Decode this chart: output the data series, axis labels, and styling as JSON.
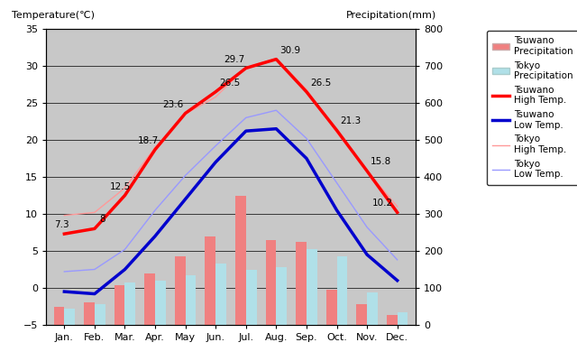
{
  "months": [
    "Jan.",
    "Feb.",
    "Mar.",
    "Apr.",
    "May",
    "Jun.",
    "Jul.",
    "Aug.",
    "Sep.",
    "Oct.",
    "Nov.",
    "Dec."
  ],
  "tsuwano_high": [
    7.3,
    8.0,
    12.5,
    18.7,
    23.6,
    26.5,
    29.7,
    30.9,
    26.5,
    21.3,
    15.8,
    10.2
  ],
  "tsuwano_low": [
    -0.5,
    -0.8,
    2.5,
    7.0,
    12.0,
    17.0,
    21.2,
    21.5,
    17.5,
    10.5,
    4.5,
    1.0
  ],
  "tokyo_high": [
    9.8,
    10.2,
    13.5,
    19.0,
    23.5,
    25.8,
    29.8,
    31.0,
    26.8,
    21.0,
    15.8,
    11.0
  ],
  "tokyo_low": [
    2.2,
    2.5,
    5.2,
    10.5,
    15.2,
    19.2,
    23.0,
    24.0,
    20.2,
    14.2,
    8.2,
    3.8
  ],
  "tsuwano_precip_mm": [
    48,
    62,
    108,
    138,
    185,
    240,
    350,
    230,
    225,
    95,
    55,
    28
  ],
  "tokyo_precip_mm": [
    45,
    55,
    115,
    120,
    135,
    165,
    148,
    155,
    205,
    185,
    88,
    34
  ],
  "title_left": "Temperature(℃)",
  "title_right": "Precipitation(mm)",
  "bg_color": "#c8c8c8",
  "tsuwano_precip_color": "#f08080",
  "tokyo_precip_color": "#b0e0e8",
  "tsuwano_high_color": "#ff0000",
  "tsuwano_low_color": "#0000cd",
  "tokyo_high_color": "#ff9999",
  "tokyo_low_color": "#9999ff",
  "ylim_temp": [
    -5,
    35
  ],
  "ylim_precip": [
    0,
    800
  ],
  "yticks_temp": [
    -5,
    0,
    5,
    10,
    15,
    20,
    25,
    30,
    35
  ],
  "yticks_precip": [
    0,
    100,
    200,
    300,
    400,
    500,
    600,
    700,
    800
  ],
  "annotated_high": [
    7.3,
    8,
    12.5,
    18.7,
    23.6,
    26.5,
    29.7,
    30.9,
    26.5,
    21.3,
    15.8,
    10.2
  ]
}
